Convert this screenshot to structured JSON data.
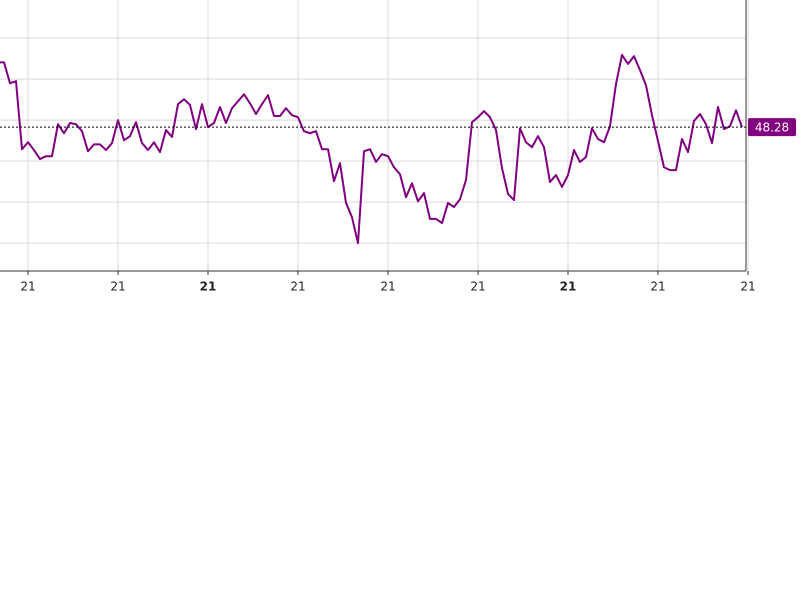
{
  "chart_data": {
    "type": "line",
    "categories": [
      null,
      null,
      null,
      null,
      null,
      "21",
      null,
      null,
      null,
      null,
      null,
      null,
      null,
      null,
      null,
      null,
      null,
      null,
      null,
      null,
      "21",
      null,
      null,
      null,
      null,
      null,
      null,
      null,
      null,
      null,
      null,
      null,
      null,
      null,
      null,
      "21",
      null,
      null,
      null,
      null,
      null,
      null,
      null,
      null,
      null,
      null,
      null,
      null,
      null,
      null,
      "21",
      null,
      null,
      null,
      null,
      null,
      null,
      null,
      null,
      null,
      null,
      null,
      null,
      null,
      null,
      "21",
      null,
      null,
      null,
      null,
      null,
      null,
      null,
      null,
      null,
      null,
      null,
      null,
      null,
      null,
      "21",
      null,
      null,
      null,
      null,
      null,
      null,
      null,
      null,
      null,
      null,
      null,
      null,
      null,
      null,
      "21",
      null,
      null,
      null,
      null,
      null,
      null,
      null,
      null,
      null,
      null,
      null,
      null,
      null,
      null,
      "21",
      null,
      null,
      null,
      null,
      null,
      null,
      null,
      null,
      null,
      null,
      null,
      null,
      null,
      null,
      "21"
    ],
    "bold_categories": [
      35,
      95
    ],
    "series": [
      {
        "color": "#800080",
        "values": [
          64.1,
          64.1,
          59.0,
          59.5,
          42.9,
          44.6,
          42.7,
          40.5,
          41.2,
          41.2,
          49.0,
          46.8,
          49.3,
          49.0,
          47.3,
          42.4,
          44.1,
          44.1,
          42.7,
          44.4,
          50.0,
          45.1,
          46.1,
          49.5,
          44.4,
          42.7,
          44.6,
          42.2,
          47.6,
          45.9,
          53.9,
          55.1,
          53.7,
          47.8,
          53.9,
          48.3,
          49.3,
          53.2,
          49.3,
          52.9,
          54.6,
          56.3,
          54.1,
          51.5,
          53.9,
          56.1,
          51.0,
          51.0,
          52.9,
          51.2,
          50.7,
          47.3,
          46.8,
          47.3,
          42.9,
          42.9,
          35.1,
          39.5,
          29.8,
          26.3,
          20.0,
          42.4,
          42.9,
          39.8,
          41.7,
          41.2,
          38.5,
          36.8,
          31.2,
          34.6,
          30.2,
          32.2,
          25.9,
          25.9,
          24.9,
          29.8,
          28.8,
          30.7,
          35.4,
          49.5,
          50.7,
          52.2,
          50.7,
          47.6,
          38.3,
          32.0,
          30.5,
          48.0,
          44.6,
          43.4,
          46.1,
          43.4,
          34.9,
          36.6,
          33.7,
          36.6,
          42.7,
          39.8,
          41.0,
          48.0,
          45.4,
          44.6,
          48.5,
          58.8,
          65.9,
          63.7,
          65.6,
          62.2,
          58.5,
          51.2,
          44.9,
          38.5,
          37.8,
          37.8,
          45.4,
          42.2,
          49.8,
          51.5,
          49.0,
          44.4,
          53.2,
          47.8,
          48.5,
          52.4,
          48.28,
          null
        ]
      }
    ],
    "last_value": 48.28,
    "ylim": [
      13.2,
      79.3
    ],
    "yticks": [
      20,
      30,
      40,
      50,
      60,
      70
    ],
    "grid": true
  }
}
